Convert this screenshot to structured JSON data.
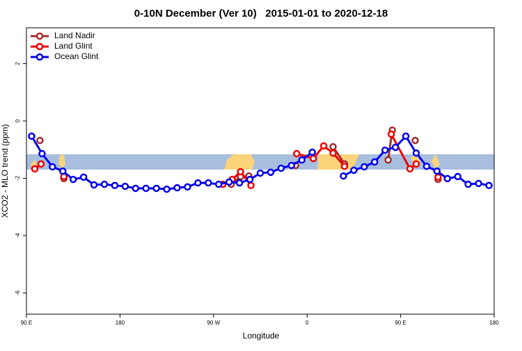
{
  "chart_data": {
    "type": "line",
    "title": "0-10N December (Ver 10)   2015-01-01 to 2020-12-18",
    "x_label": "Longitude",
    "y_label": "XCO2 - MLO trend (ppm)",
    "xlim": [
      90,
      540
    ],
    "xticks": [
      {
        "value": 90,
        "label": "90 E"
      },
      180,
      {
        "value": 270,
        "label": "90 W"
      },
      {
        "value": 360,
        "label": "0"
      },
      {
        "value": 450,
        "label": "90 E"
      },
      {
        "value": 540,
        "label": "180"
      }
    ],
    "ylim": [
      -6.74,
      3.25
    ],
    "yticks": [
      -6,
      -4,
      -2,
      0,
      2
    ],
    "legend": "top-left",
    "series": [
      {
        "name": "Land Nadir",
        "color": "#a52a2a",
        "x": [
          103,
          null,
          126,
          null,
          287,
          296,
          304,
          null,
          349,
          null,
          385,
          396,
          null,
          438,
          442,
          null,
          464,
          null,
          486
        ],
        "values": [
          -0.68,
          null,
          -2.01,
          null,
          -2.21,
          -1.94,
          -1.92,
          null,
          -1.55,
          null,
          -0.9,
          -1.5,
          null,
          -1.36,
          -0.32,
          null,
          -0.68,
          null,
          -2.04
        ]
      },
      {
        "name": "Land Glint",
        "color": "#ee0000",
        "x": [
          98,
          104,
          null,
          126,
          null,
          279,
          288,
          296,
          306,
          null,
          350,
          366,
          376,
          385,
          396,
          null,
          441,
          459,
          465,
          null,
          486
        ],
        "values": [
          -1.67,
          -1.5,
          null,
          -1.94,
          null,
          -2.21,
          -2.04,
          -1.77,
          -2.25,
          null,
          -1.14,
          -1.31,
          -0.87,
          -1.12,
          -1.58,
          null,
          -0.46,
          -1.67,
          -1.5,
          null,
          -1.96
        ]
      },
      {
        "name": "Ocean Glint",
        "color": "#0000ee",
        "x": [
          95,
          105,
          115,
          125,
          135,
          145,
          155,
          165,
          175,
          185,
          195,
          205,
          215,
          225,
          235,
          245,
          255,
          265,
          275,
          285,
          295,
          305,
          315,
          325,
          335,
          345,
          355,
          365,
          null,
          395,
          405,
          415,
          425,
          435,
          445,
          455,
          465,
          475,
          485,
          495,
          505,
          515,
          525,
          535
        ],
        "values": [
          -0.53,
          -1.14,
          -1.6,
          -1.75,
          -2.04,
          -1.96,
          -2.23,
          -2.21,
          -2.25,
          -2.28,
          -2.35,
          -2.35,
          -2.35,
          -2.38,
          -2.33,
          -2.3,
          -2.16,
          -2.16,
          -2.21,
          -2.13,
          -2.16,
          -2.04,
          -1.82,
          -1.79,
          -1.65,
          -1.55,
          -1.36,
          -1.09,
          null,
          -1.92,
          -1.72,
          -1.6,
          -1.43,
          -1.02,
          -0.92,
          -0.53,
          -1.12,
          -1.58,
          -1.75,
          -2.01,
          -1.94,
          -2.21,
          -2.18,
          -2.25
        ]
      }
    ]
  }
}
